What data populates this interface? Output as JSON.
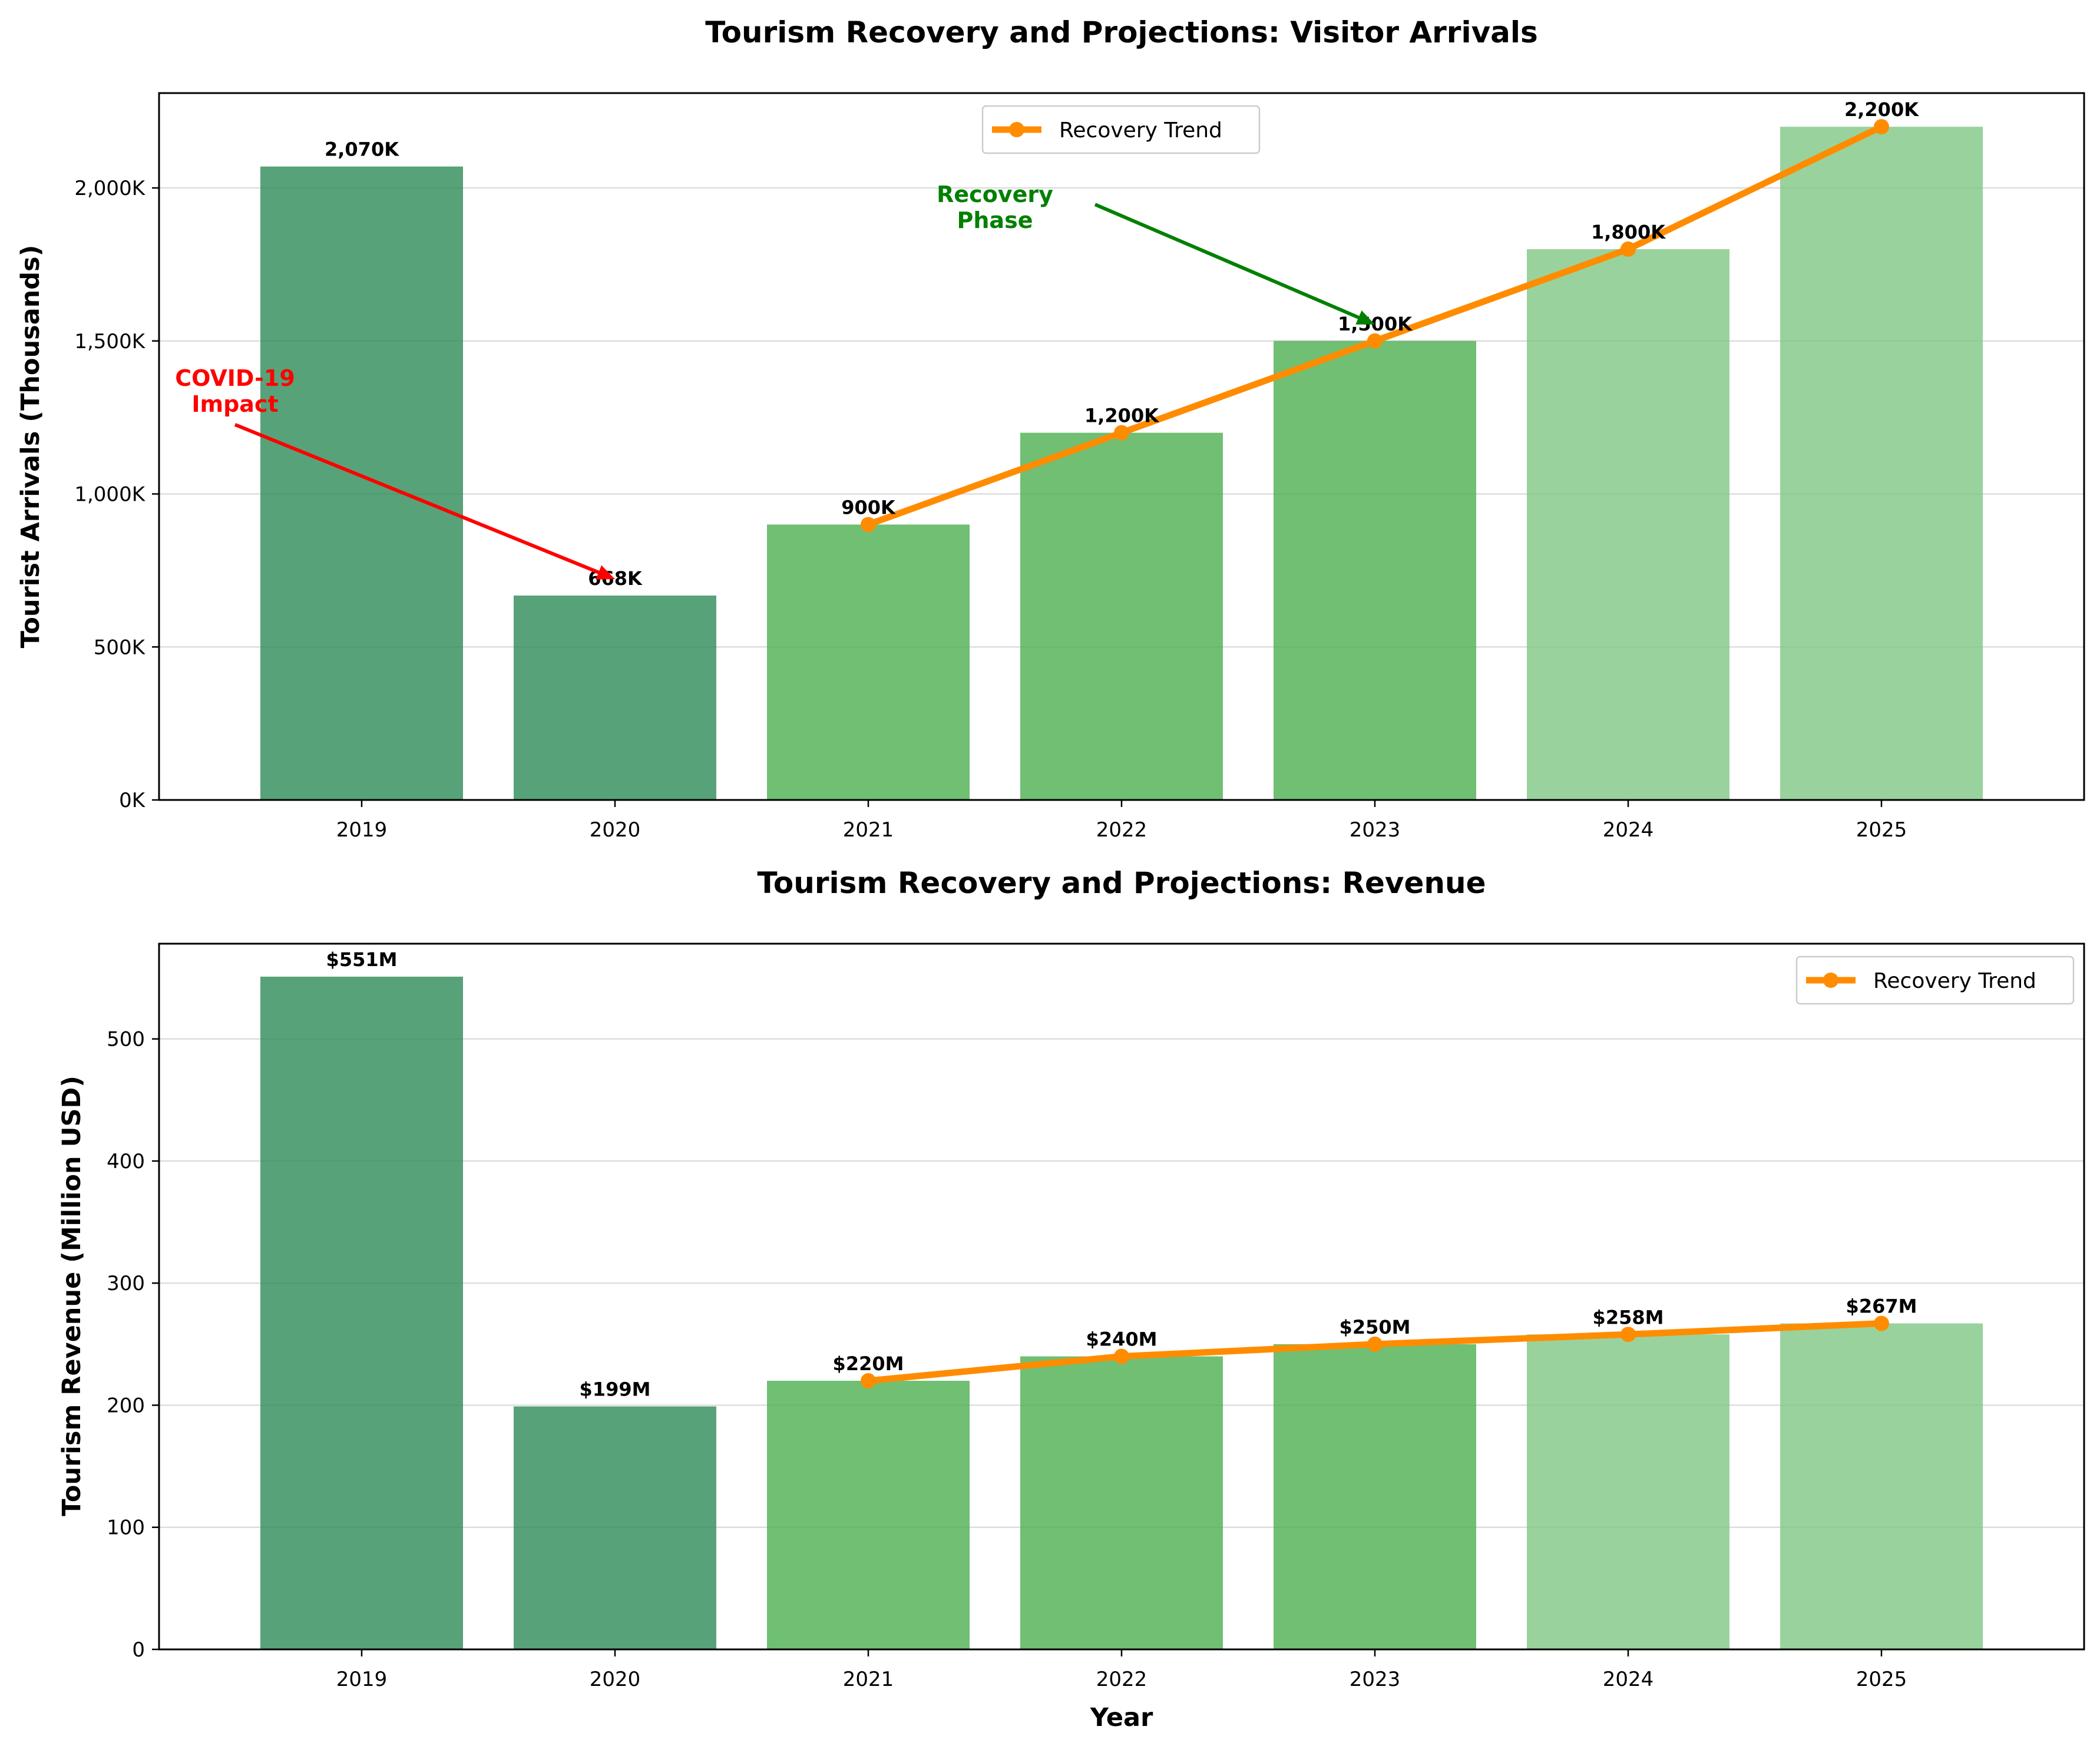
{
  "colors": {
    "historical": "#2e8b57",
    "recovery": "#4caf50",
    "projection": "#81c784",
    "trend": "#ff8c00",
    "covid_annotation": "#ff0000",
    "recovery_annotation": "#008000",
    "grid": "#dddddd"
  },
  "chart_data": [
    {
      "type": "bar",
      "title": "Tourism Recovery and Projections: Visitor Arrivals",
      "xlabel": "",
      "ylabel": "Tourist Arrivals (Thousands)",
      "categories": [
        "2019",
        "2020",
        "2021",
        "2022",
        "2023",
        "2024",
        "2025"
      ],
      "values": [
        2070,
        668,
        900,
        1200,
        1500,
        1800,
        2200
      ],
      "bar_labels": [
        "2,070K",
        "668K",
        "900K",
        "1,200K",
        "1,500K",
        "1,800K",
        "2,200K"
      ],
      "bar_groups": [
        "historical",
        "historical",
        "recovery",
        "recovery",
        "recovery",
        "projection",
        "projection"
      ],
      "ylim": [
        0,
        2310
      ],
      "yticks": [
        0,
        500,
        1000,
        1500,
        2000
      ],
      "ytick_labels": [
        "0K",
        "500K",
        "1,000K",
        "1,500K",
        "2,000K"
      ],
      "grid": "horizontal",
      "legend_position": "top-center",
      "trend": {
        "name": "Recovery Trend",
        "x": [
          "2021",
          "2022",
          "2023",
          "2024",
          "2025"
        ],
        "values": [
          900,
          1200,
          1500,
          1800,
          2200
        ]
      },
      "annotations": [
        {
          "text": "COVID-19\nImpact",
          "target_x": "2020",
          "target_y": 668,
          "text_x": 2018.5,
          "text_y": 1265,
          "color": "covid_annotation"
        },
        {
          "text": "Recovery\nPhase",
          "target_x": "2023",
          "target_y": 1500,
          "text_x": 2021.5,
          "text_y": 1865,
          "color": "recovery_annotation"
        }
      ]
    },
    {
      "type": "bar",
      "title": "Tourism Recovery and Projections: Revenue",
      "xlabel": "Year",
      "ylabel": "Tourism Revenue (Million USD)",
      "categories": [
        "2019",
        "2020",
        "2021",
        "2022",
        "2023",
        "2024",
        "2025"
      ],
      "values": [
        551,
        199,
        220,
        240,
        250,
        258,
        267
      ],
      "bar_labels": [
        "$551M",
        "$199M",
        "$220M",
        "$240M",
        "$250M",
        "$258M",
        "$267M"
      ],
      "bar_groups": [
        "historical",
        "historical",
        "recovery",
        "recovery",
        "recovery",
        "projection",
        "projection"
      ],
      "ylim": [
        0,
        578
      ],
      "yticks": [
        0,
        100,
        200,
        300,
        400,
        500
      ],
      "ytick_labels": [
        "0",
        "100",
        "200",
        "300",
        "400",
        "500"
      ],
      "grid": "horizontal",
      "legend_position": "top-right",
      "trend": {
        "name": "Recovery Trend",
        "x": [
          "2021",
          "2022",
          "2023",
          "2024",
          "2025"
        ],
        "values": [
          220,
          240,
          250,
          258,
          267
        ]
      },
      "annotations": []
    }
  ]
}
